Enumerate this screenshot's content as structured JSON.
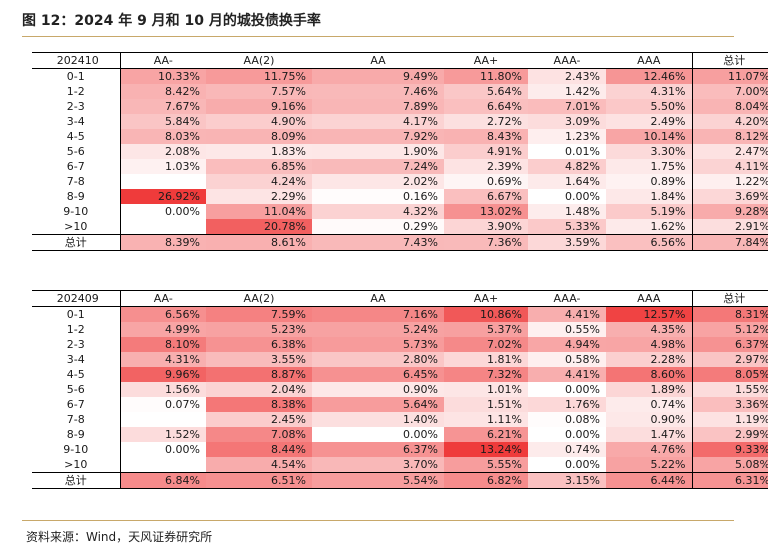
{
  "title": "图 12：2024 年 9 月和 10 月的城投债换手率",
  "source": "资料来源：Wind，天风证券研究所",
  "colors": {
    "rule": "#c8a86a",
    "heat_max": "#ef3b3b",
    "heat_min": "#ffffff"
  },
  "chart_data": [
    {
      "type": "heatmap",
      "corner_label": "202410",
      "columns": [
        "AA-",
        "AA(2)",
        "AA",
        "AA+",
        "AAA-",
        "AAA",
        "总计"
      ],
      "rows": [
        "0-1",
        "1-2",
        "2-3",
        "3-4",
        "4-5",
        "5-6",
        "6-7",
        "7-8",
        "8-9",
        "9-10",
        ">10",
        "总计"
      ],
      "cells": [
        [
          "10.33%",
          "11.75%",
          "9.49%",
          "11.80%",
          "2.43%",
          "12.46%",
          "11.07%"
        ],
        [
          "8.42%",
          "7.57%",
          "7.46%",
          "5.64%",
          "1.42%",
          "4.31%",
          "7.00%"
        ],
        [
          "7.67%",
          "9.16%",
          "7.89%",
          "6.64%",
          "7.01%",
          "5.50%",
          "8.04%"
        ],
        [
          "5.84%",
          "4.90%",
          "4.17%",
          "2.72%",
          "3.09%",
          "2.49%",
          "4.20%"
        ],
        [
          "8.03%",
          "8.09%",
          "7.92%",
          "8.43%",
          "1.23%",
          "10.14%",
          "8.12%"
        ],
        [
          "2.08%",
          "1.83%",
          "1.90%",
          "4.91%",
          "0.01%",
          "3.30%",
          "2.47%"
        ],
        [
          "1.03%",
          "6.85%",
          "7.24%",
          "2.39%",
          "4.82%",
          "1.75%",
          "4.11%"
        ],
        [
          "",
          "4.24%",
          "2.02%",
          "0.69%",
          "1.64%",
          "0.89%",
          "1.22%"
        ],
        [
          "26.92%",
          "2.29%",
          "0.16%",
          "6.67%",
          "0.00%",
          "1.84%",
          "3.69%"
        ],
        [
          "0.00%",
          "11.04%",
          "4.32%",
          "13.02%",
          "1.48%",
          "5.19%",
          "9.28%"
        ],
        [
          "",
          "20.78%",
          "0.29%",
          "3.90%",
          "5.33%",
          "1.62%",
          "2.91%"
        ],
        [
          "8.39%",
          "8.61%",
          "7.43%",
          "7.36%",
          "3.59%",
          "6.56%",
          "7.84%"
        ]
      ]
    },
    {
      "type": "heatmap",
      "corner_label": "202409",
      "columns": [
        "AA-",
        "AA(2)",
        "AA",
        "AA+",
        "AAA-",
        "AAA",
        "总计"
      ],
      "rows": [
        "0-1",
        "1-2",
        "2-3",
        "3-4",
        "4-5",
        "5-6",
        "6-7",
        "7-8",
        "8-9",
        "9-10",
        ">10",
        "总计"
      ],
      "cells": [
        [
          "6.56%",
          "7.59%",
          "7.16%",
          "10.86%",
          "4.41%",
          "12.57%",
          "8.31%"
        ],
        [
          "4.99%",
          "5.23%",
          "5.24%",
          "5.37%",
          "0.55%",
          "4.35%",
          "5.12%"
        ],
        [
          "8.10%",
          "6.38%",
          "5.73%",
          "7.02%",
          "4.94%",
          "4.98%",
          "6.37%"
        ],
        [
          "4.31%",
          "3.55%",
          "2.80%",
          "1.81%",
          "0.58%",
          "2.28%",
          "2.97%"
        ],
        [
          "9.96%",
          "8.87%",
          "6.45%",
          "7.32%",
          "4.41%",
          "8.60%",
          "8.05%"
        ],
        [
          "1.56%",
          "2.04%",
          "0.90%",
          "1.01%",
          "0.00%",
          "1.89%",
          "1.55%"
        ],
        [
          "0.07%",
          "8.38%",
          "5.64%",
          "1.51%",
          "1.76%",
          "0.74%",
          "3.36%"
        ],
        [
          "",
          "2.45%",
          "1.40%",
          "1.11%",
          "0.08%",
          "0.90%",
          "1.19%"
        ],
        [
          "1.52%",
          "7.08%",
          "0.00%",
          "6.21%",
          "0.00%",
          "1.47%",
          "2.99%"
        ],
        [
          "0.00%",
          "8.44%",
          "6.37%",
          "13.24%",
          "0.74%",
          "4.76%",
          "9.33%"
        ],
        [
          "",
          "4.54%",
          "3.70%",
          "5.55%",
          "0.00%",
          "5.22%",
          "5.08%"
        ],
        [
          "6.84%",
          "6.51%",
          "5.54%",
          "6.82%",
          "3.15%",
          "6.44%",
          "6.31%"
        ]
      ]
    }
  ]
}
